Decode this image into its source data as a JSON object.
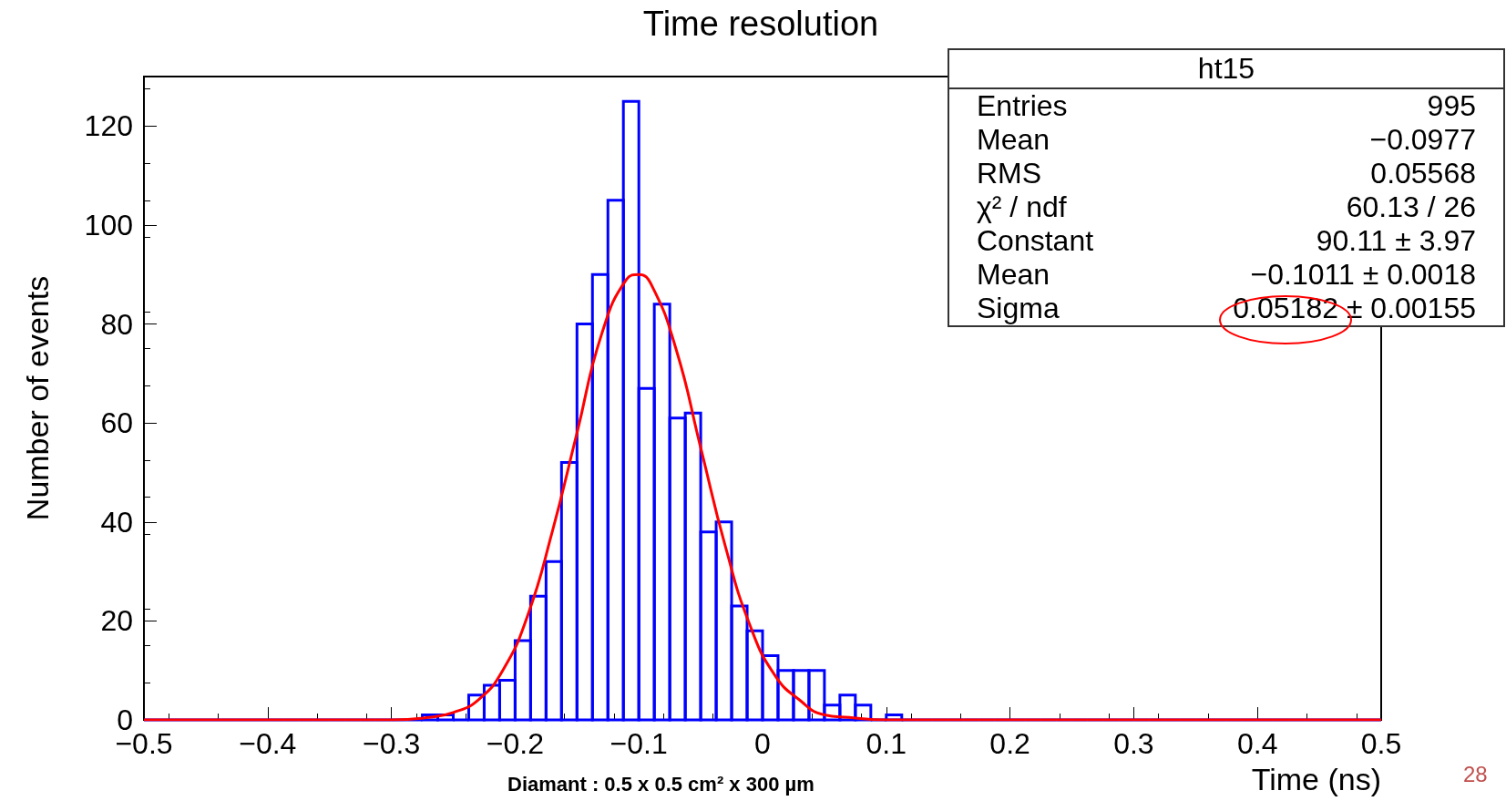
{
  "chart_data": {
    "type": "histogram",
    "title": "Time resolution",
    "xlabel": "Time (ns)",
    "ylabel": "Number of events",
    "bins": [
      -0.5,
      -0.4875,
      -0.475,
      -0.4625,
      -0.45,
      -0.4375,
      -0.425,
      -0.4125,
      -0.4,
      -0.3875,
      -0.375,
      -0.3625,
      -0.35,
      -0.3375,
      -0.325,
      -0.3125,
      -0.3,
      -0.2875,
      -0.275,
      -0.2625,
      -0.25,
      -0.2375,
      -0.225,
      -0.2125,
      -0.2,
      -0.1875,
      -0.175,
      -0.1625,
      -0.15,
      -0.1375,
      -0.125,
      -0.1125,
      -0.1,
      -0.0875,
      -0.075,
      -0.0625,
      -0.05,
      -0.0375,
      -0.025,
      -0.0125,
      0,
      0.0125,
      0.025,
      0.0375,
      0.05,
      0.0625,
      0.075,
      0.0875,
      0.1,
      0.1125,
      0.125,
      0.1375,
      0.15,
      0.1625,
      0.175,
      0.1875,
      0.2,
      0.2125,
      0.225,
      0.2375,
      0.25,
      0.2625,
      0.275,
      0.2875,
      0.3,
      0.3125,
      0.325,
      0.3375,
      0.35,
      0.3625,
      0.375,
      0.3875,
      0.4,
      0.4125,
      0.425,
      0.4375,
      0.45,
      0.4625,
      0.475,
      0.4875,
      0.5
    ],
    "series": [
      {
        "color": "#0000ff",
        "values": [
          0,
          0,
          0,
          0,
          0,
          0,
          0,
          0,
          0,
          0,
          0,
          0,
          0,
          0,
          0,
          0,
          0,
          0,
          1,
          1,
          0,
          5,
          7,
          8,
          16,
          25,
          32,
          52,
          80,
          90,
          105,
          125,
          67,
          84,
          61,
          62,
          38,
          40,
          23,
          18,
          13,
          10,
          10,
          10,
          3,
          5,
          3,
          0,
          1,
          0,
          0,
          0,
          0,
          0,
          0,
          0,
          0,
          0,
          0,
          0,
          0,
          0,
          0,
          0,
          0,
          0,
          0,
          0,
          0,
          0,
          0,
          0,
          0,
          0,
          0,
          0,
          0,
          0,
          0,
          0
        ]
      },
      {
        "type": "line",
        "color": "#ff0000",
        "x": [
          -0.5,
          -0.3,
          -0.27,
          -0.25,
          -0.23,
          -0.21,
          -0.19,
          -0.17,
          -0.15,
          -0.13,
          -0.11,
          -0.1,
          -0.09,
          -0.07,
          -0.05,
          -0.03,
          -0.01,
          0.01,
          0.03,
          0.05,
          0.07,
          0.1,
          0.5
        ],
        "values": [
          0,
          0,
          0.5,
          1.5,
          4,
          10,
          21,
          38,
          58,
          78,
          89,
          90,
          88,
          75,
          55,
          35,
          19,
          9,
          4,
          1,
          0.5,
          0,
          0
        ]
      }
    ],
    "xlim": [
      -0.5,
      0.5
    ],
    "xticks": [
      {
        "value": -0.5,
        "label": "−0.5"
      },
      {
        "value": -0.4,
        "label": "−0.4"
      },
      {
        "value": -0.3,
        "label": "−0.3"
      },
      {
        "value": -0.2,
        "label": "−0.2"
      },
      {
        "value": -0.1,
        "label": "−0.1"
      },
      0,
      0.1,
      0.2,
      0.3,
      0.4,
      0.5
    ],
    "ylim": [
      0,
      130
    ],
    "yticks": [
      0,
      20,
      40,
      60,
      80,
      100,
      120
    ],
    "marker": "none",
    "line_style": "solid",
    "annotations": [
      "ht15",
      "Entries",
      "995",
      "Mean",
      "−0.0977",
      "RMS",
      "0.05568",
      "χ² / ndf",
      "60.13 / 26",
      "Constant",
      "90.11 ± 3.97",
      "Mean",
      "−0.1011 ± 0.0018",
      "Sigma",
      "0.05182 ± 0.00155",
      "Diamant : 0.5 x 0.5 cm² x 300 µm",
      "28"
    ]
  }
}
